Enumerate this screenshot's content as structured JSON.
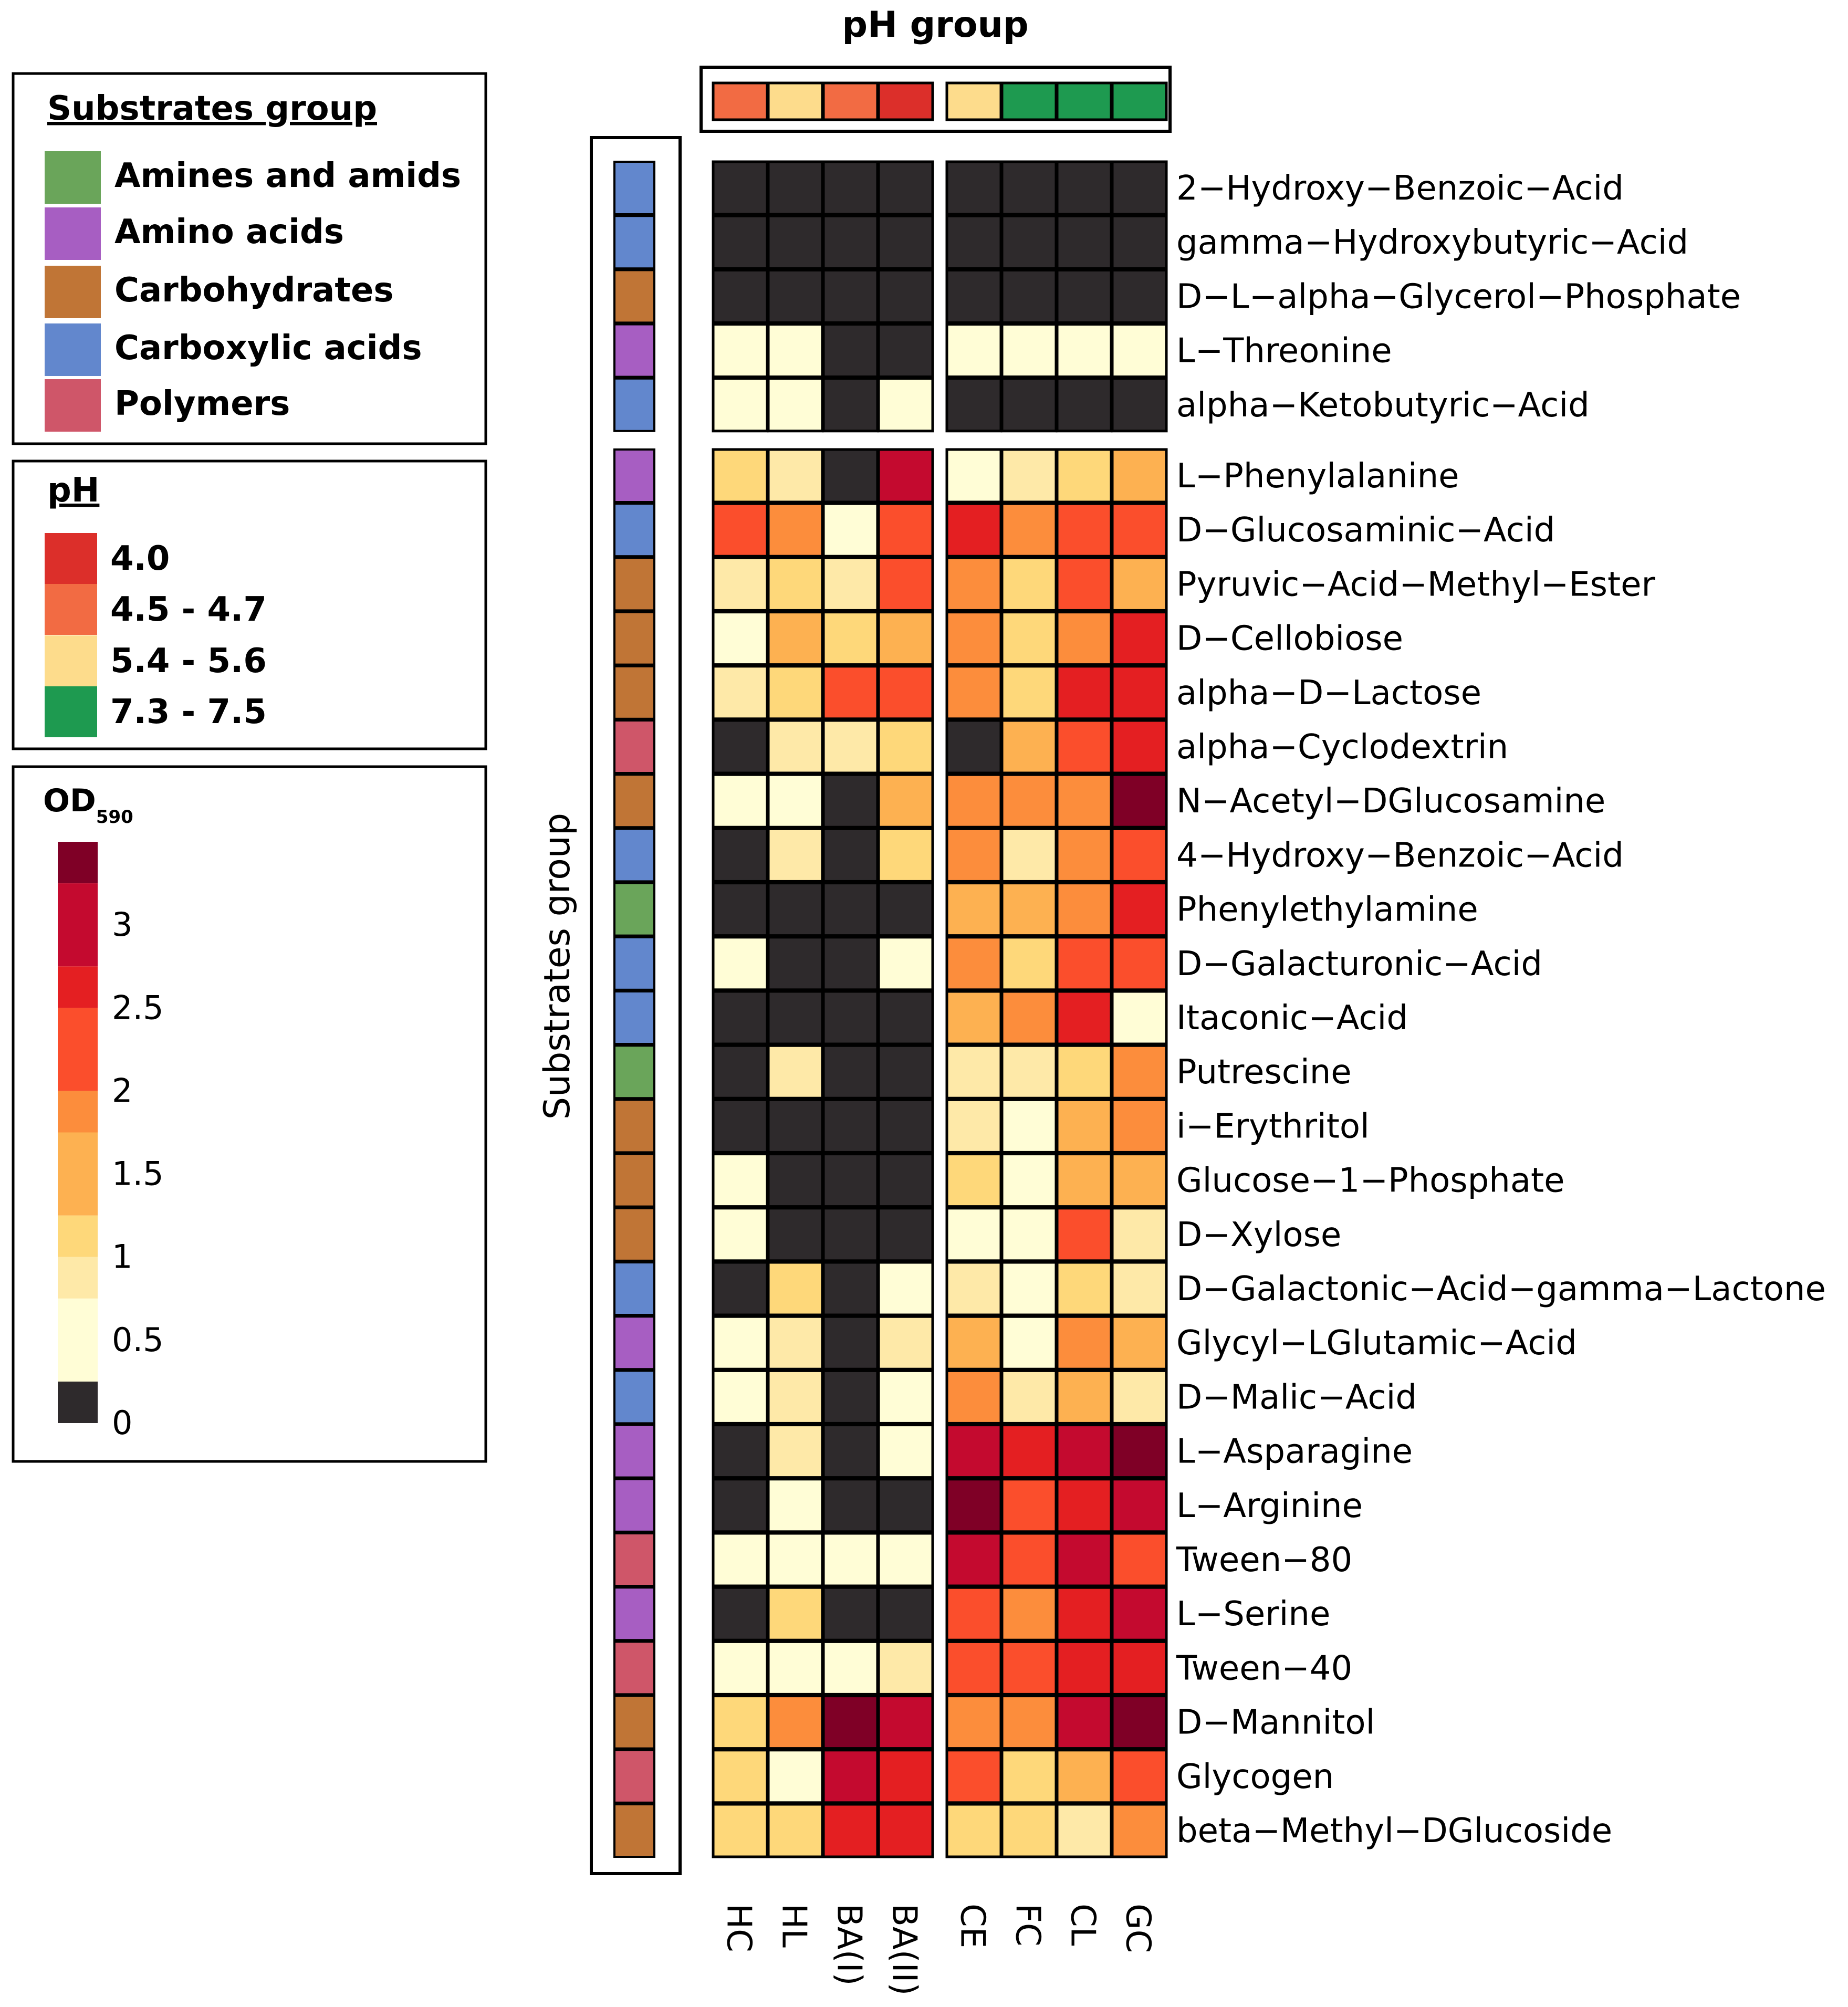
{
  "chart_data": {
    "type": "heatmap",
    "title": "pH group",
    "columns": [
      "HC",
      "HL",
      "BA(I)",
      "BA(II)",
      "CE",
      "FC",
      "CL",
      "GC"
    ],
    "column_groups": [
      [
        "HC",
        "HL",
        "BA(I)",
        "BA(II)"
      ],
      [
        "CE",
        "FC",
        "CL",
        "GC"
      ]
    ],
    "ph_group": [
      "4.5 - 4.7",
      "5.4 - 5.6",
      "4.5 - 4.7",
      "4.0",
      "5.4 - 5.6",
      "7.3 - 7.5",
      "7.3 - 7.5",
      "7.3 - 7.5"
    ],
    "row_axis_label": "Substrates group",
    "row_groups": [
      5,
      25
    ],
    "rows": [
      {
        "name": "2−Hydroxy−Benzoic−Acid",
        "group": "Carboxylic acids",
        "values": [
          0,
          0,
          0,
          0,
          0,
          0,
          0,
          0
        ]
      },
      {
        "name": "gamma−Hydroxybutyric−Acid",
        "group": "Carboxylic acids",
        "values": [
          0,
          0,
          0,
          0,
          0,
          0,
          0,
          0
        ]
      },
      {
        "name": "D−L−alpha−Glycerol−Phosphate",
        "group": "Carbohydrates",
        "values": [
          0,
          0,
          0,
          0,
          0,
          0,
          0,
          0
        ]
      },
      {
        "name": "L−Threonine",
        "group": "Amino acids",
        "values": [
          0.3,
          0.3,
          0,
          0,
          0.3,
          0.3,
          0.3,
          0.3
        ]
      },
      {
        "name": "alpha−Ketobutyric−Acid",
        "group": "Carboxylic acids",
        "values": [
          0.3,
          0.3,
          0,
          0.3,
          0,
          0,
          0,
          0
        ]
      },
      {
        "name": "L−Phenylalanine",
        "group": "Amino acids",
        "values": [
          1.1,
          0.9,
          0,
          3.0,
          0.4,
          0.9,
          1.1,
          1.4
        ]
      },
      {
        "name": "D−Glucosaminic−Acid",
        "group": "Carboxylic acids",
        "values": [
          2.2,
          1.9,
          0.4,
          2.2,
          2.6,
          1.9,
          2.2,
          2.2
        ]
      },
      {
        "name": "Pyruvic−Acid−Methyl−Ester",
        "group": "Carbohydrates",
        "values": [
          0.9,
          1.1,
          0.9,
          2.2,
          1.9,
          1.1,
          2.2,
          1.4
        ]
      },
      {
        "name": "D−Cellobiose",
        "group": "Carbohydrates",
        "values": [
          0.4,
          1.4,
          1.1,
          1.4,
          1.9,
          1.1,
          1.9,
          2.6
        ]
      },
      {
        "name": "alpha−D−Lactose",
        "group": "Carbohydrates",
        "values": [
          0.9,
          1.1,
          2.2,
          2.2,
          1.9,
          1.1,
          2.6,
          2.6
        ]
      },
      {
        "name": "alpha−Cyclodextrin",
        "group": "Polymers",
        "values": [
          0,
          0.9,
          0.9,
          1.1,
          0,
          1.4,
          2.2,
          2.6
        ]
      },
      {
        "name": "N−Acetyl−DGlucosamine",
        "group": "Carbohydrates",
        "values": [
          0.4,
          0.4,
          0,
          1.4,
          1.9,
          1.9,
          1.9,
          3.4
        ]
      },
      {
        "name": "4−Hydroxy−Benzoic−Acid",
        "group": "Carboxylic acids",
        "values": [
          0,
          0.9,
          0,
          1.1,
          1.9,
          0.9,
          1.9,
          2.2
        ]
      },
      {
        "name": "Phenylethylamine",
        "group": "Amines and amids",
        "values": [
          0,
          0,
          0,
          0,
          1.4,
          1.4,
          1.9,
          2.6
        ]
      },
      {
        "name": "D−Galacturonic−Acid",
        "group": "Carboxylic acids",
        "values": [
          0.4,
          0,
          0,
          0.4,
          1.9,
          1.1,
          2.2,
          2.2
        ]
      },
      {
        "name": "Itaconic−Acid",
        "group": "Carboxylic acids",
        "values": [
          0,
          0,
          0,
          0,
          1.4,
          1.9,
          2.6,
          0.4
        ]
      },
      {
        "name": "Putrescine",
        "group": "Amines and amids",
        "values": [
          0,
          0.9,
          0,
          0,
          0.9,
          0.9,
          1.1,
          1.9
        ]
      },
      {
        "name": "i−Erythritol",
        "group": "Carbohydrates",
        "values": [
          0,
          0,
          0,
          0,
          0.9,
          0.4,
          1.4,
          1.9
        ]
      },
      {
        "name": "Glucose−1−Phosphate",
        "group": "Carbohydrates",
        "values": [
          0.4,
          0,
          0,
          0,
          1.1,
          0.4,
          1.4,
          1.4
        ]
      },
      {
        "name": "D−Xylose",
        "group": "Carbohydrates",
        "values": [
          0.4,
          0,
          0,
          0,
          0.4,
          0.4,
          2.2,
          0.9
        ]
      },
      {
        "name": "D−Galactonic−Acid−gamma−Lactone",
        "group": "Carboxylic acids",
        "values": [
          0,
          1.1,
          0,
          0.4,
          0.9,
          0.4,
          1.1,
          0.9
        ]
      },
      {
        "name": "Glycyl−LGlutamic−Acid",
        "group": "Amino acids",
        "values": [
          0.4,
          0.9,
          0,
          0.9,
          1.4,
          0.4,
          1.9,
          1.4
        ]
      },
      {
        "name": "D−Malic−Acid",
        "group": "Carboxylic acids",
        "values": [
          0.4,
          0.9,
          0,
          0.4,
          1.9,
          0.9,
          1.4,
          0.9
        ]
      },
      {
        "name": "L−Asparagine",
        "group": "Amino acids",
        "values": [
          0,
          0.9,
          0,
          0.4,
          3.0,
          2.6,
          3.0,
          3.4
        ]
      },
      {
        "name": "L−Arginine",
        "group": "Amino acids",
        "values": [
          0,
          0.4,
          0,
          0,
          3.4,
          2.2,
          2.6,
          3.0
        ]
      },
      {
        "name": "Tween−80",
        "group": "Polymers",
        "values": [
          0.4,
          0.4,
          0.4,
          0.4,
          3.0,
          2.2,
          3.0,
          2.2
        ]
      },
      {
        "name": "L−Serine",
        "group": "Amino acids",
        "values": [
          0,
          1.1,
          0,
          0,
          2.2,
          1.9,
          2.6,
          3.0
        ]
      },
      {
        "name": "Tween−40",
        "group": "Polymers",
        "values": [
          0.4,
          0.4,
          0.4,
          0.9,
          2.2,
          2.2,
          2.6,
          2.6
        ]
      },
      {
        "name": "D−Mannitol",
        "group": "Carbohydrates",
        "values": [
          1.1,
          1.9,
          3.4,
          3.0,
          1.9,
          1.9,
          3.0,
          3.4
        ]
      },
      {
        "name": "Glycogen",
        "group": "Polymers",
        "values": [
          1.1,
          0.4,
          3.0,
          2.6,
          2.2,
          1.1,
          1.4,
          2.2
        ]
      },
      {
        "name": "beta−Methyl−DGlucoside",
        "group": "Carbohydrates",
        "values": [
          1.1,
          1.1,
          2.6,
          2.6,
          1.1,
          1.1,
          0.9,
          1.9
        ]
      }
    ],
    "legend_substrates": {
      "title": "Substrates group",
      "items": [
        {
          "label": "Amines and amids",
          "color": "#6aa55a"
        },
        {
          "label": "Amino acids",
          "color": "#a75ec2"
        },
        {
          "label": "Carbohydrates",
          "color": "#c07536"
        },
        {
          "label": "Carboxylic acids",
          "color": "#6287cd"
        },
        {
          "label": "Polymers",
          "color": "#cf5669"
        }
      ]
    },
    "legend_ph": {
      "title": "pH",
      "items": [
        {
          "label": "4.0",
          "color": "#dc2f2a"
        },
        {
          "label": "4.5 - 4.7",
          "color": "#f26b43"
        },
        {
          "label": "5.4 - 5.6",
          "color": "#fddc8c"
        },
        {
          "label": "7.3 - 7.5",
          "color": "#1e9a50"
        }
      ]
    },
    "legend_od": {
      "title_main": "OD",
      "title_sub": "590",
      "range": [
        0,
        3.5
      ],
      "ticks": [
        "0",
        "0.5",
        "1",
        "1.5",
        "2",
        "2.5",
        "3"
      ],
      "tick_values": [
        0,
        0.5,
        1,
        1.5,
        2,
        2.5,
        3
      ],
      "bins": [
        {
          "min": 0,
          "max": 0.25,
          "color": "#2e2a2c"
        },
        {
          "min": 0.25,
          "max": 0.75,
          "color": "#fffdd6"
        },
        {
          "min": 0.75,
          "max": 1.0,
          "color": "#fee9a8"
        },
        {
          "min": 1.0,
          "max": 1.25,
          "color": "#fed87a"
        },
        {
          "min": 1.25,
          "max": 1.75,
          "color": "#fdb151"
        },
        {
          "min": 1.75,
          "max": 2.0,
          "color": "#fc8d3c"
        },
        {
          "min": 2.0,
          "max": 2.5,
          "color": "#fb4e2c"
        },
        {
          "min": 2.5,
          "max": 2.75,
          "color": "#e41f22"
        },
        {
          "min": 2.75,
          "max": 3.25,
          "color": "#c40a2f"
        },
        {
          "min": 3.25,
          "max": 3.5,
          "color": "#7f0026"
        }
      ]
    }
  }
}
